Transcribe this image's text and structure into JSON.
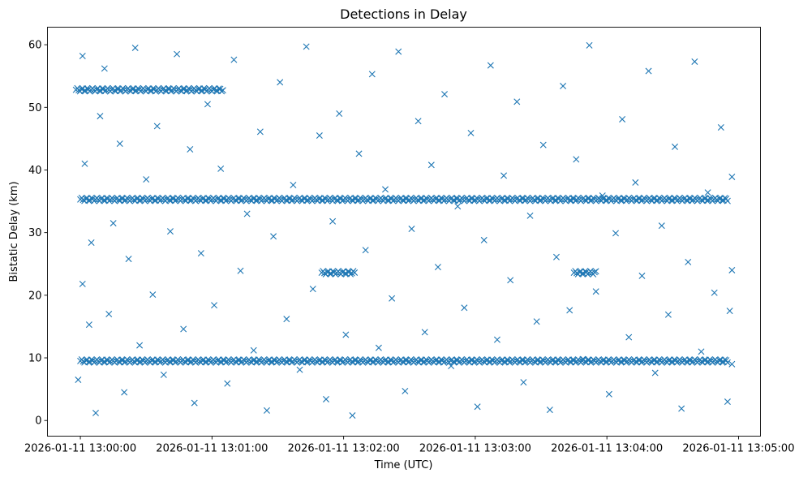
{
  "chart_data": {
    "type": "scatter",
    "title": "Detections in Delay",
    "xlabel": "Time (UTC)",
    "ylabel": "Bistatic Delay (km)",
    "marker": "x",
    "color": "#1f77b4",
    "x_type": "datetime",
    "x_ticks": [
      "2026-01-11 13:00:00",
      "2026-01-11 13:01:00",
      "2026-01-11 13:02:00",
      "2026-01-11 13:03:00",
      "2026-01-11 13:04:00",
      "2026-01-11 13:05:00"
    ],
    "xlim": [
      "2026-01-11 12:59:45",
      "2026-01-11 13:05:10"
    ],
    "y_ticks": [
      0,
      10,
      20,
      30,
      40,
      50,
      60
    ],
    "ylim": [
      -2.5,
      62.8
    ],
    "grid": false,
    "legend": "none",
    "tracks": [
      {
        "delay_km": 52.8,
        "start": "2026-01-11 12:59:58",
        "end": "2026-01-11 13:01:05"
      },
      {
        "delay_km": 35.3,
        "start": "2026-01-11 13:00:00",
        "end": "2026-01-11 13:04:55"
      },
      {
        "delay_km": 9.5,
        "start": "2026-01-11 13:00:00",
        "end": "2026-01-11 13:04:55"
      },
      {
        "delay_km": 23.6,
        "start": "2026-01-11 13:01:50",
        "end": "2026-01-11 13:02:05"
      },
      {
        "delay_km": 23.6,
        "start": "2026-01-11 13:03:45",
        "end": "2026-01-11 13:03:55"
      }
    ],
    "points": [
      [
        "2026-01-11 12:59:59",
        6.5
      ],
      [
        "2026-01-11 13:00:01",
        21.8
      ],
      [
        "2026-01-11 13:00:02",
        41.0
      ],
      [
        "2026-01-11 13:00:01",
        58.2
      ],
      [
        "2026-01-11 13:00:04",
        15.3
      ],
      [
        "2026-01-11 13:00:05",
        28.4
      ],
      [
        "2026-01-11 13:00:07",
        1.2
      ],
      [
        "2026-01-11 13:00:09",
        48.6
      ],
      [
        "2026-01-11 13:00:11",
        56.2
      ],
      [
        "2026-01-11 13:00:13",
        17.0
      ],
      [
        "2026-01-11 13:00:15",
        31.5
      ],
      [
        "2026-01-11 13:00:18",
        44.2
      ],
      [
        "2026-01-11 13:00:20",
        4.5
      ],
      [
        "2026-01-11 13:00:22",
        25.8
      ],
      [
        "2026-01-11 13:00:25",
        59.5
      ],
      [
        "2026-01-11 13:00:27",
        12.0
      ],
      [
        "2026-01-11 13:00:30",
        38.5
      ],
      [
        "2026-01-11 13:00:33",
        20.1
      ],
      [
        "2026-01-11 13:00:35",
        47.0
      ],
      [
        "2026-01-11 13:00:38",
        7.3
      ],
      [
        "2026-01-11 13:00:41",
        30.2
      ],
      [
        "2026-01-11 13:00:44",
        58.5
      ],
      [
        "2026-01-11 13:00:47",
        14.6
      ],
      [
        "2026-01-11 13:00:50",
        43.3
      ],
      [
        "2026-01-11 13:00:52",
        2.8
      ],
      [
        "2026-01-11 13:00:55",
        26.7
      ],
      [
        "2026-01-11 13:00:58",
        50.5
      ],
      [
        "2026-01-11 13:01:01",
        18.4
      ],
      [
        "2026-01-11 13:01:04",
        40.2
      ],
      [
        "2026-01-11 13:01:07",
        5.9
      ],
      [
        "2026-01-11 13:01:10",
        57.6
      ],
      [
        "2026-01-11 13:01:13",
        23.9
      ],
      [
        "2026-01-11 13:01:16",
        33.0
      ],
      [
        "2026-01-11 13:01:19",
        11.2
      ],
      [
        "2026-01-11 13:01:22",
        46.1
      ],
      [
        "2026-01-11 13:01:25",
        1.6
      ],
      [
        "2026-01-11 13:01:28",
        29.4
      ],
      [
        "2026-01-11 13:01:31",
        54.0
      ],
      [
        "2026-01-11 13:01:34",
        16.2
      ],
      [
        "2026-01-11 13:01:37",
        37.6
      ],
      [
        "2026-01-11 13:01:40",
        8.1
      ],
      [
        "2026-01-11 13:01:43",
        59.7
      ],
      [
        "2026-01-11 13:01:46",
        21.0
      ],
      [
        "2026-01-11 13:01:49",
        45.5
      ],
      [
        "2026-01-11 13:01:52",
        3.4
      ],
      [
        "2026-01-11 13:01:55",
        31.8
      ],
      [
        "2026-01-11 13:01:58",
        49.0
      ],
      [
        "2026-01-11 13:02:01",
        13.7
      ],
      [
        "2026-01-11 13:02:04",
        0.8
      ],
      [
        "2026-01-11 13:02:07",
        42.6
      ],
      [
        "2026-01-11 13:02:10",
        27.2
      ],
      [
        "2026-01-11 13:02:13",
        55.3
      ],
      [
        "2026-01-11 13:02:16",
        11.6
      ],
      [
        "2026-01-11 13:02:19",
        36.9
      ],
      [
        "2026-01-11 13:02:22",
        19.5
      ],
      [
        "2026-01-11 13:02:25",
        58.9
      ],
      [
        "2026-01-11 13:02:28",
        4.7
      ],
      [
        "2026-01-11 13:02:31",
        30.6
      ],
      [
        "2026-01-11 13:02:34",
        47.8
      ],
      [
        "2026-01-11 13:02:37",
        14.1
      ],
      [
        "2026-01-11 13:02:40",
        40.8
      ],
      [
        "2026-01-11 13:02:43",
        24.5
      ],
      [
        "2026-01-11 13:02:46",
        52.1
      ],
      [
        "2026-01-11 13:02:49",
        8.7
      ],
      [
        "2026-01-11 13:02:52",
        34.2
      ],
      [
        "2026-01-11 13:02:55",
        18.0
      ],
      [
        "2026-01-11 13:02:58",
        45.9
      ],
      [
        "2026-01-11 13:03:01",
        2.2
      ],
      [
        "2026-01-11 13:03:04",
        28.8
      ],
      [
        "2026-01-11 13:03:07",
        56.7
      ],
      [
        "2026-01-11 13:03:10",
        12.9
      ],
      [
        "2026-01-11 13:03:13",
        39.1
      ],
      [
        "2026-01-11 13:03:16",
        22.4
      ],
      [
        "2026-01-11 13:03:19",
        50.9
      ],
      [
        "2026-01-11 13:03:22",
        6.1
      ],
      [
        "2026-01-11 13:03:25",
        32.7
      ],
      [
        "2026-01-11 13:03:28",
        15.8
      ],
      [
        "2026-01-11 13:03:31",
        44.0
      ],
      [
        "2026-01-11 13:03:34",
        1.7
      ],
      [
        "2026-01-11 13:03:37",
        26.1
      ],
      [
        "2026-01-11 13:03:40",
        53.4
      ],
      [
        "2026-01-11 13:03:43",
        17.6
      ],
      [
        "2026-01-11 13:03:46",
        41.7
      ],
      [
        "2026-01-11 13:03:49",
        9.8
      ],
      [
        "2026-01-11 13:03:52",
        59.9
      ],
      [
        "2026-01-11 13:03:55",
        20.6
      ],
      [
        "2026-01-11 13:03:58",
        35.9
      ],
      [
        "2026-01-11 13:04:01",
        4.2
      ],
      [
        "2026-01-11 13:04:04",
        29.9
      ],
      [
        "2026-01-11 13:04:07",
        48.1
      ],
      [
        "2026-01-11 13:04:10",
        13.3
      ],
      [
        "2026-01-11 13:04:13",
        38.0
      ],
      [
        "2026-01-11 13:04:16",
        23.1
      ],
      [
        "2026-01-11 13:04:19",
        55.8
      ],
      [
        "2026-01-11 13:04:22",
        7.6
      ],
      [
        "2026-01-11 13:04:25",
        31.1
      ],
      [
        "2026-01-11 13:04:28",
        16.9
      ],
      [
        "2026-01-11 13:04:31",
        43.7
      ],
      [
        "2026-01-11 13:04:34",
        1.9
      ],
      [
        "2026-01-11 13:04:37",
        25.3
      ],
      [
        "2026-01-11 13:04:40",
        57.3
      ],
      [
        "2026-01-11 13:04:43",
        11.0
      ],
      [
        "2026-01-11 13:04:46",
        36.4
      ],
      [
        "2026-01-11 13:04:49",
        20.4
      ],
      [
        "2026-01-11 13:04:52",
        46.8
      ],
      [
        "2026-01-11 13:04:55",
        3.0
      ],
      [
        "2026-01-11 13:04:56",
        17.5
      ],
      [
        "2026-01-11 13:04:57",
        24.0
      ],
      [
        "2026-01-11 13:04:57",
        38.9
      ],
      [
        "2026-01-11 13:04:57",
        9.0
      ]
    ]
  }
}
